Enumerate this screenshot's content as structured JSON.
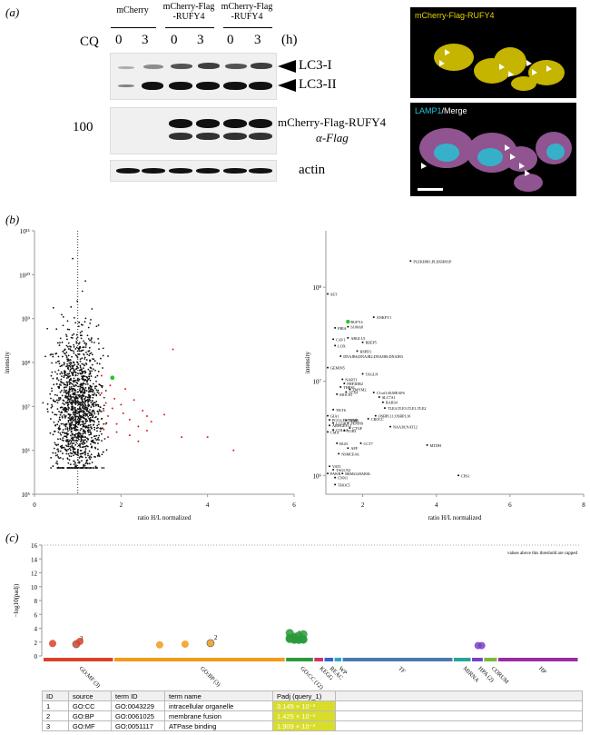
{
  "panel_a": {
    "label": "(a)",
    "lanes": [
      {
        "name": "mCherry",
        "lines": [
          "mCherry"
        ]
      },
      {
        "name": "mCherry-Flag-RUFY4",
        "lines": [
          "mCherry-Flag",
          "-RUFY4"
        ]
      },
      {
        "name": "mCherry-Flag-RUFY4",
        "lines": [
          "mCherry-Flag",
          "-RUFY4"
        ]
      }
    ],
    "cq_label": "CQ",
    "time_values": [
      "0",
      "3",
      "0",
      "3",
      "0",
      "3"
    ],
    "time_unit": "(h)",
    "marker": "100",
    "band_labels": {
      "lc3i": "LC3-I",
      "lc3ii": "LC3-II",
      "rufy": "mCherry-Flag-RUFY4",
      "flag": "α-Flag",
      "actin": "actin"
    },
    "micro_top_label": "mCherry-Flag-RUFY4",
    "micro_bottom_label": {
      "part1": "LAMP1",
      "part2": "/Merge"
    },
    "colors": {
      "yellow": "#e8d400",
      "cyan": "#20c8d8",
      "magenta": "#c070c0"
    }
  },
  "panel_b": {
    "label": "(b)"
  },
  "panel_c": {
    "label": "(c)",
    "threshold_note": "values above this threshold are capped",
    "categories": [
      {
        "name": "GO:MF (3)",
        "color": "#d9412a"
      },
      {
        "name": "GO:BP (3)",
        "color": "#f29a1a"
      },
      {
        "name": "GO:CC (12)",
        "color": "#2a9a3a"
      },
      {
        "name": "KEGG",
        "color": "#d0336a"
      },
      {
        "name": "REAC",
        "color": "#3366cc"
      },
      {
        "name": "WP",
        "color": "#2aa9c0"
      },
      {
        "name": "TF",
        "color": "#4a7ab0"
      },
      {
        "name": "MIRNA",
        "color": "#26a69a"
      },
      {
        "name": "HPA (2)",
        "color": "#7a3fc4"
      },
      {
        "name": "CORUM",
        "color": "#7ab83a"
      },
      {
        "name": "HP",
        "color": "#9a2aa8"
      }
    ],
    "table": {
      "headers": {
        "id": "ID",
        "source": "source",
        "term_id": "term ID",
        "term_name": "term name",
        "p": "Padj (query_1)"
      },
      "rows": [
        {
          "id": "1",
          "source": "GO:CC",
          "term_id": "GO:0043229",
          "term_name": "intracellular organelle",
          "p": "3.145 × 10⁻³"
        },
        {
          "id": "2",
          "source": "GO:BP",
          "term_id": "GO:0061025",
          "term_name": "membrane fusion",
          "p": "1.425 × 10⁻²"
        },
        {
          "id": "3",
          "source": "GO:MF",
          "term_id": "GO:0051117",
          "term_name": "ATPase binding",
          "p": "1.909 × 10⁻²"
        }
      ]
    }
  },
  "chart_data": [
    {
      "type": "scatter",
      "xlabel": "ratio H/L normalized",
      "ylabel": "intensity",
      "xticks": [
        "0",
        "2",
        "4",
        "6"
      ],
      "yticks": [
        "10⁵",
        "10⁶",
        "10⁷",
        "10⁸",
        "10⁹",
        "10¹⁰",
        "10¹¹"
      ],
      "xlim": [
        0,
        6
      ],
      "ylim_log10": [
        5,
        11
      ],
      "y_scale": "log",
      "reference_line_x": 1,
      "highlight": {
        "x": 1.8,
        "y": 45000000.0
      },
      "red_points": [
        [
          1.55,
          20000000.0
        ],
        [
          1.6,
          8000000.0
        ],
        [
          1.65,
          12000000.0
        ],
        [
          1.7,
          6000000.0
        ],
        [
          1.75,
          30000000.0
        ],
        [
          1.8,
          9000000.0
        ],
        [
          1.85,
          15000000.0
        ],
        [
          1.9,
          4000000.0
        ],
        [
          2.0,
          11000000.0
        ],
        [
          2.05,
          7000000.0
        ],
        [
          2.1,
          25000000.0
        ],
        [
          2.2,
          5000000.0
        ],
        [
          2.3,
          14000000.0
        ],
        [
          2.4,
          3500000.0
        ],
        [
          2.5,
          8000000.0
        ],
        [
          2.6,
          6000000.0
        ],
        [
          2.7,
          4500000.0
        ],
        [
          1.6,
          3000000.0
        ],
        [
          1.7,
          2000000.0
        ],
        [
          1.9,
          2600000.0
        ],
        [
          2.2,
          2200000.0
        ],
        [
          2.4,
          1600000.0
        ],
        [
          2.6,
          2800000.0
        ],
        [
          3.0,
          6500000.0
        ],
        [
          3.2,
          200000000.0
        ],
        [
          3.4,
          2000000.0
        ],
        [
          4.0,
          2000000.0
        ],
        [
          4.6,
          1000000.0
        ],
        [
          1.55,
          50000000.0
        ],
        [
          1.65,
          4000000.0
        ]
      ]
    },
    {
      "type": "scatter",
      "xlabel": "ratio H/L normalized",
      "ylabel": "intensity",
      "xticks": [
        "2",
        "4",
        "6",
        "8"
      ],
      "yticks": [
        "10⁶",
        "10⁷",
        "10⁸"
      ],
      "xlim": [
        1.0,
        8.0
      ],
      "ylim_log10": [
        5.8,
        8.6
      ],
      "y_scale": "log",
      "labeled_points": [
        {
          "label": "PLEKHM1;PLEKHM1P",
          "x": 3.3,
          "y": 190000000.0
        },
        {
          "label": "SET",
          "x": 1.05,
          "y": 85000000.0
        },
        {
          "label": "ANKFY1",
          "x": 2.3,
          "y": 48000000.0
        },
        {
          "label": "RUFY4",
          "x": 1.6,
          "y": 43000000.0,
          "highlight": true
        },
        {
          "label": "S100A8",
          "x": 1.6,
          "y": 38000000.0
        },
        {
          "label": "PBIA",
          "x": 1.25,
          "y": 37000000.0
        },
        {
          "label": "ARGLU1",
          "x": 1.6,
          "y": 29000000.0
        },
        {
          "label": "CAV1",
          "x": 1.2,
          "y": 28000000.0
        },
        {
          "label": "REEP5",
          "x": 2.0,
          "y": 26000000.0
        },
        {
          "label": "LOX",
          "x": 1.25,
          "y": 24000000.0
        },
        {
          "label": "HSPD1",
          "x": 1.85,
          "y": 21000000.0
        },
        {
          "label": "DNAJB6;DNAJB2;DNAJB8;DNAJB3",
          "x": 1.4,
          "y": 18500000.0
        },
        {
          "label": "GEMIN5",
          "x": 1.05,
          "y": 14000000.0
        },
        {
          "label": "TAGLN",
          "x": 2.0,
          "y": 12000000.0
        },
        {
          "label": "NART1",
          "x": 1.45,
          "y": 10500000.0
        },
        {
          "label": "PHF3DR2",
          "x": 1.5,
          "y": 9500000.0
        },
        {
          "label": "THBS1",
          "x": 1.4,
          "y": 8700000.0
        },
        {
          "label": "ZMYM2",
          "x": 1.65,
          "y": 8200000.0
        },
        {
          "label": "STX4",
          "x": 1.55,
          "y": 7700000.0
        },
        {
          "label": "MOCS1",
          "x": 1.3,
          "y": 7300000.0
        },
        {
          "label": "C1orf140;MEAF6",
          "x": 2.3,
          "y": 7600000.0
        },
        {
          "label": "SLC7A1",
          "x": 2.45,
          "y": 6800000.0
        },
        {
          "label": "RAB34",
          "x": 2.55,
          "y": 6000000.0
        },
        {
          "label": "TLE4;TLE3;TLE1;TLE2",
          "x": 2.6,
          "y": 5200000.0
        },
        {
          "label": "YKT6",
          "x": 1.2,
          "y": 5000000.0
        },
        {
          "label": "GIA1",
          "x": 1.05,
          "y": 4300000.0
        },
        {
          "label": "OSBPL11;OSBPL10",
          "x": 2.35,
          "y": 4300000.0
        },
        {
          "label": "CROCC",
          "x": 2.15,
          "y": 4000000.0
        },
        {
          "label": "PCO1;P1TWM6",
          "x": 1.1,
          "y": 3900000.0
        },
        {
          "label": "TPM5",
          "x": 1.55,
          "y": 3850000.0
        },
        {
          "label": "PEMNS",
          "x": 1.6,
          "y": 3600000.0
        },
        {
          "label": "LCOR",
          "x": 1.2,
          "y": 3600000.0
        },
        {
          "label": "ARHGEF12",
          "x": 1.1,
          "y": 3400000.0
        },
        {
          "label": "CTGF",
          "x": 1.65,
          "y": 3200000.0
        },
        {
          "label": "NAA30;NAT12",
          "x": 2.75,
          "y": 3300000.0
        },
        {
          "label": "COL6A",
          "x": 1.2,
          "y": 3050000.0
        },
        {
          "label": "TUB1",
          "x": 1.5,
          "y": 3000000.0
        },
        {
          "label": "CMA",
          "x": 1.05,
          "y": 2900000.0
        },
        {
          "label": "BGN",
          "x": 1.3,
          "y": 2200000.0
        },
        {
          "label": "CCT7",
          "x": 1.95,
          "y": 2200000.0
        },
        {
          "label": "MTDH",
          "x": 3.75,
          "y": 2100000.0
        },
        {
          "label": "AFF",
          "x": 1.6,
          "y": 1950000.0
        },
        {
          "label": "NSMCE4A",
          "x": 1.35,
          "y": 1700000.0
        },
        {
          "label": "VAT1",
          "x": 1.1,
          "y": 1250000.0
        },
        {
          "label": "TAGLN2",
          "x": 1.2,
          "y": 1150000.0
        },
        {
          "label": "PAWR",
          "x": 1.05,
          "y": 1050000.0
        },
        {
          "label": "CPS1",
          "x": 4.6,
          "y": 1000000.0
        },
        {
          "label": "RBM24;HARSL",
          "x": 1.45,
          "y": 1050000.0
        },
        {
          "label": "CNN1",
          "x": 1.25,
          "y": 950000.0
        },
        {
          "label": "THOC5",
          "x": 1.25,
          "y": 800000.0
        }
      ]
    },
    {
      "type": "scatter",
      "ylabel": "−log10(padj)",
      "yticks": [
        "0",
        "2",
        "4",
        "6",
        "8",
        "10",
        "12",
        "14",
        "16"
      ],
      "ylim": [
        0,
        16
      ],
      "cap_value": 16,
      "points": [
        {
          "category": "GO:MF (3)",
          "value": 1.8
        },
        {
          "category": "GO:MF (3)",
          "value": 1.7,
          "id": "3"
        },
        {
          "category": "GO:MF (3)",
          "value": 2.1
        },
        {
          "category": "GO:BP (3)",
          "value": 1.6
        },
        {
          "category": "GO:BP (3)",
          "value": 1.7
        },
        {
          "category": "GO:BP (3)",
          "value": 1.85,
          "id": "2"
        },
        {
          "category": "GO:CC (12)",
          "value": 2.5,
          "id": "1"
        },
        {
          "category": "GO:CC (12)",
          "value": 2.2
        },
        {
          "category": "GO:CC (12)",
          "value": 2.0
        },
        {
          "category": "GO:CC (12)",
          "value": 1.9
        },
        {
          "category": "GO:CC (12)",
          "value": 1.6
        },
        {
          "category": "GO:CC (12)",
          "value": 1.4
        },
        {
          "category": "GO:CC (12)",
          "value": 1.3
        },
        {
          "category": "GO:CC (12)",
          "value": 1.3
        },
        {
          "category": "GO:CC (12)",
          "value": 1.3
        },
        {
          "category": "GO:CC (12)",
          "value": 1.3
        },
        {
          "category": "GO:CC (12)",
          "value": 1.3
        },
        {
          "category": "GO:CC (12)",
          "value": 1.3
        },
        {
          "category": "HPA (2)",
          "value": 1.5
        },
        {
          "category": "HPA (2)",
          "value": 1.5
        }
      ]
    }
  ]
}
